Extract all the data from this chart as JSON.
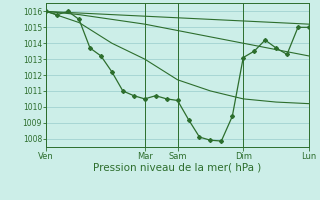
{
  "background_color": "#cceee8",
  "grid_color": "#99cccc",
  "line_color": "#2d6e2d",
  "xlabel": "Pression niveau de la mer( hPa )",
  "xlabel_fontsize": 7.5,
  "ylim": [
    1007.5,
    1016.5
  ],
  "yticks": [
    1008,
    1009,
    1010,
    1011,
    1012,
    1013,
    1014,
    1015,
    1016
  ],
  "xtick_labels": [
    "Ven",
    "",
    "Mar",
    "Sam",
    "",
    "Dim",
    "",
    "Lun"
  ],
  "xtick_positions": [
    0,
    18,
    36,
    48,
    60,
    72,
    84,
    96
  ],
  "smooth_line1_x": [
    0,
    12,
    24,
    36,
    48,
    60,
    72,
    84,
    96
  ],
  "smooth_line1_y": [
    1016.0,
    1015.9,
    1015.8,
    1015.7,
    1015.6,
    1015.5,
    1015.4,
    1015.3,
    1015.2
  ],
  "smooth_line2_x": [
    0,
    12,
    24,
    36,
    48,
    60,
    72,
    84,
    96
  ],
  "smooth_line2_y": [
    1016.0,
    1015.8,
    1015.5,
    1015.2,
    1014.8,
    1014.4,
    1014.0,
    1013.6,
    1013.2
  ],
  "smooth_line3_x": [
    0,
    12,
    24,
    36,
    48,
    60,
    72,
    84,
    96
  ],
  "smooth_line3_y": [
    1016.0,
    1015.3,
    1014.0,
    1013.0,
    1011.7,
    1011.0,
    1010.5,
    1010.3,
    1010.2
  ],
  "main_line_x": [
    0,
    4,
    8,
    12,
    16,
    20,
    24,
    28,
    32,
    36,
    40,
    44,
    48,
    52,
    56,
    60,
    64,
    68,
    72,
    76,
    80,
    84,
    88,
    92,
    96
  ],
  "main_line_y": [
    1016.0,
    1015.8,
    1016.0,
    1015.5,
    1013.7,
    1013.2,
    1012.2,
    1011.0,
    1010.7,
    1010.5,
    1010.7,
    1010.5,
    1010.4,
    1009.2,
    1008.1,
    1007.9,
    1007.85,
    1009.4,
    1013.1,
    1013.5,
    1014.2,
    1013.7,
    1013.3,
    1015.0,
    1015.0
  ]
}
